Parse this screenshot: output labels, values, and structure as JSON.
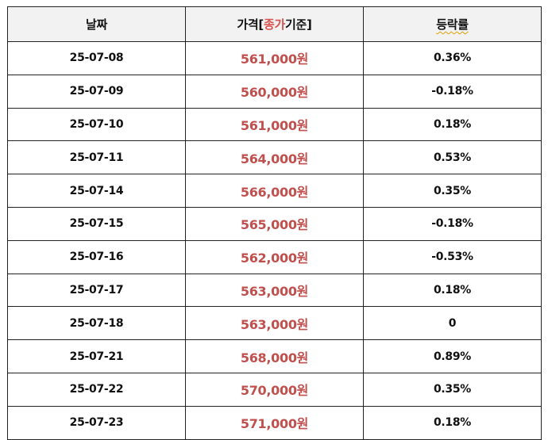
{
  "headers": {
    "date": "날짜",
    "price_prefix": "가격[",
    "price_highlight": "종가",
    "price_suffix": "기준]",
    "change": "등락률"
  },
  "rows": [
    {
      "date": "25-07-08",
      "price": "561,000원",
      "change": "0.36%"
    },
    {
      "date": "25-07-09",
      "price": "560,000원",
      "change": "-0.18%"
    },
    {
      "date": "25-07-10",
      "price": "561,000원",
      "change": "0.18%"
    },
    {
      "date": "25-07-11",
      "price": "564,000원",
      "change": "0.53%"
    },
    {
      "date": "25-07-14",
      "price": "566,000원",
      "change": "0.35%"
    },
    {
      "date": "25-07-15",
      "price": "565,000원",
      "change": "-0.18%"
    },
    {
      "date": "25-07-16",
      "price": "562,000원",
      "change": "-0.53%"
    },
    {
      "date": "25-07-17",
      "price": "563,000원",
      "change": "0.18%"
    },
    {
      "date": "25-07-18",
      "price": "563,000원",
      "change": "0"
    },
    {
      "date": "25-07-21",
      "price": "568,000원",
      "change": "0.89%"
    },
    {
      "date": "25-07-22",
      "price": "570,000원",
      "change": "0.35%"
    },
    {
      "date": "25-07-23",
      "price": "571,000원",
      "change": "0.18%"
    }
  ]
}
